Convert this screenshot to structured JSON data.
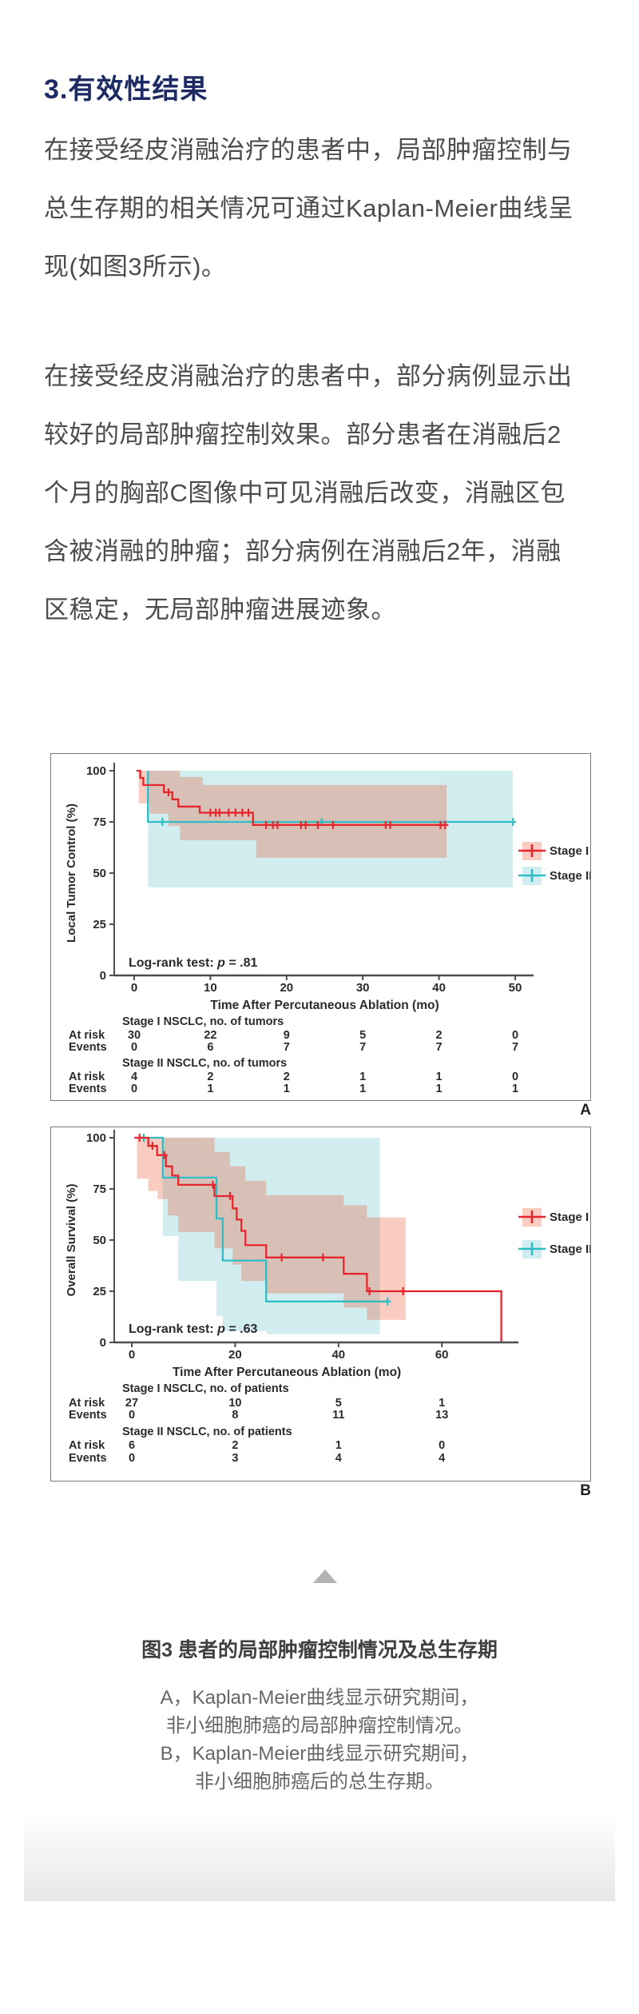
{
  "heading": "3.有效性结果",
  "paragraphs": {
    "p1": "在接受经皮消融治疗的患者中，局部肿瘤控制与\n总生存期的相关情况可通过Kaplan-Meier曲线呈\n现(如图3所示)。",
    "p2": "在接受经皮消融治疗的患者中，部分病例显示出\n较好的局部肿瘤控制效果。部分患者在消融后2\n个月的胸部C图像中可见消融后改变，消融区包\n含被消融的肿瘤；部分病例在消融后2年，消融\n区稳定，无局部肿瘤进展迹象。"
  },
  "colors": {
    "heading": "#1d2a63",
    "body_text": "#4c4c4c",
    "chart_border": "#77787b",
    "chart_text": "#2a2a2c",
    "axis": "#4d4e50",
    "stage1_red": "#e5262e",
    "stage2_teal": "#2fbec6",
    "stage1_band": "rgba(232,96,60,0.32)",
    "stage2_band": "rgba(70,185,195,0.25)",
    "triangle": "#b2b2b2"
  },
  "icons": {
    "footer_collapse": "triangle-up"
  },
  "caption": {
    "title": "图3  患者的局部肿瘤控制情况及总生存期",
    "body": "A，Kaplan-Meier曲线显示研究期间，\n非小细胞肺癌的局部肿瘤控制情况。\nB，Kaplan-Meier曲线显示研究期间，\n非小细胞肺癌后的总生存期。"
  },
  "chart_data": [
    {
      "panel_label": "A",
      "type": "line",
      "subtype": "kaplan-meier",
      "title": "",
      "ylabel": "Local Tumor Control (%)",
      "xlabel": "Time After Percutaneous Ablation (mo)",
      "xlim": [
        0,
        52
      ],
      "ylim": [
        0,
        100
      ],
      "xticks": [
        0,
        10,
        20,
        30,
        40,
        50
      ],
      "yticks": [
        0,
        25,
        50,
        75,
        100
      ],
      "grid": false,
      "legend_position": "right",
      "logrank_prefix": "Log-rank test: ",
      "logrank_p": " = .81",
      "legend": [
        {
          "name": "Stage I"
        },
        {
          "name": "Stage II"
        }
      ],
      "series": [
        {
          "name": "Stage I",
          "line_color": "#e5262e",
          "band_fill": "rgba(232,96,60,0.32)",
          "steps": [
            [
              0.3,
              100
            ],
            [
              0.8,
              100
            ],
            [
              0.8,
              96.5
            ],
            [
              1.2,
              96.5
            ],
            [
              1.2,
              93
            ],
            [
              3.9,
              93
            ],
            [
              3.9,
              89.5
            ],
            [
              5,
              89.5
            ],
            [
              5,
              86
            ],
            [
              5.8,
              86
            ],
            [
              5.8,
              82.5
            ],
            [
              8.6,
              82.5
            ],
            [
              8.6,
              79.5
            ],
            [
              15.6,
              79.5
            ],
            [
              15.6,
              73.5
            ],
            [
              41,
              73.5
            ]
          ],
          "censors": [
            [
              4.5,
              89.5
            ],
            [
              10,
              79.5
            ],
            [
              10.7,
              79.5
            ],
            [
              11.2,
              79.5
            ],
            [
              12.4,
              79.5
            ],
            [
              13.3,
              79.5
            ],
            [
              14.2,
              79.5
            ],
            [
              15,
              79.5
            ],
            [
              17.3,
              73.5
            ],
            [
              18.2,
              73.5
            ],
            [
              18.8,
              73.5
            ],
            [
              21.9,
              73.5
            ],
            [
              22.5,
              73.5
            ],
            [
              24.1,
              73.5
            ],
            [
              26.1,
              73.5
            ],
            [
              33,
              73.5
            ],
            [
              33.6,
              73.5
            ],
            [
              40.2,
              73.5
            ],
            [
              40.8,
              73.5
            ]
          ],
          "band_upper": [
            [
              0.6,
              100
            ],
            [
              6,
              100
            ],
            [
              6,
              97
            ],
            [
              9,
              97
            ],
            [
              9,
              93
            ],
            [
              41,
              93
            ]
          ],
          "band_lower": [
            [
              0.6,
              84
            ],
            [
              2,
              84
            ],
            [
              2,
              79
            ],
            [
              4.5,
              79
            ],
            [
              4.5,
              73
            ],
            [
              6,
              73
            ],
            [
              6,
              66
            ],
            [
              16,
              66
            ],
            [
              16,
              57.5
            ],
            [
              41,
              57.5
            ]
          ]
        },
        {
          "name": "Stage II",
          "line_color": "#2fbec6",
          "band_fill": "rgba(70,185,195,0.25)",
          "steps": [
            [
              1.8,
              100
            ],
            [
              1.8,
              75
            ],
            [
              49.7,
              75
            ]
          ],
          "censors": [
            [
              3.7,
              75
            ],
            [
              24.6,
              75
            ],
            [
              49.7,
              75
            ]
          ],
          "band_upper": [
            [
              1.8,
              100
            ],
            [
              49.7,
              100
            ]
          ],
          "band_lower": [
            [
              1.8,
              43
            ],
            [
              49.7,
              43
            ]
          ]
        }
      ],
      "risk_table": {
        "row_labels": [
          "At risk",
          "Events"
        ],
        "groups": [
          {
            "title": "Stage I NSCLC, no. of tumors",
            "at_risk": [
              30,
              22,
              9,
              5,
              2,
              0
            ],
            "events": [
              0,
              6,
              7,
              7,
              7,
              7
            ]
          },
          {
            "title": "Stage II NSCLC, no. of tumors",
            "at_risk": [
              4,
              2,
              2,
              1,
              1,
              0
            ],
            "events": [
              0,
              1,
              1,
              1,
              1,
              1
            ]
          }
        ]
      }
    },
    {
      "panel_label": "B",
      "type": "line",
      "subtype": "kaplan-meier",
      "title": "",
      "ylabel": "Overall Survival (%)",
      "xlabel": "Time After Percutaneous Ablation (mo)",
      "xlim": [
        0,
        74
      ],
      "ylim": [
        0,
        100
      ],
      "xticks": [
        0,
        20,
        40,
        60
      ],
      "yticks": [
        0,
        25,
        50,
        75,
        100
      ],
      "grid": false,
      "legend_position": "right",
      "logrank_prefix": "Log-rank test: ",
      "logrank_p": " = .63",
      "legend": [
        {
          "name": "Stage I"
        },
        {
          "name": "Stage II"
        }
      ],
      "series": [
        {
          "name": "Stage I",
          "line_color": "#e5262e",
          "band_fill": "rgba(232,96,60,0.32)",
          "steps": [
            [
              0.5,
              100
            ],
            [
              3.2,
              100
            ],
            [
              3.2,
              96
            ],
            [
              4.9,
              96
            ],
            [
              4.9,
              91.5
            ],
            [
              6.6,
              91.5
            ],
            [
              6.6,
              86
            ],
            [
              7.8,
              86
            ],
            [
              7.8,
              81.5
            ],
            [
              9,
              81.5
            ],
            [
              9,
              77
            ],
            [
              16,
              77
            ],
            [
              16,
              71.5
            ],
            [
              19.5,
              71.5
            ],
            [
              19.5,
              65.5
            ],
            [
              20.3,
              65.5
            ],
            [
              20.3,
              60
            ],
            [
              21.2,
              60
            ],
            [
              21.2,
              54.5
            ],
            [
              22,
              54.5
            ],
            [
              22,
              47.5
            ],
            [
              26,
              47.5
            ],
            [
              26,
              41.5
            ],
            [
              41,
              41.5
            ],
            [
              41,
              33.5
            ],
            [
              45.5,
              33.5
            ],
            [
              45.5,
              25
            ],
            [
              71.5,
              25
            ],
            [
              71.5,
              0
            ]
          ],
          "censors": [
            [
              1.5,
              100
            ],
            [
              4,
              96
            ],
            [
              6.3,
              91.5
            ],
            [
              15.7,
              77
            ],
            [
              19,
              71.5
            ],
            [
              29,
              41.5
            ],
            [
              37,
              41.5
            ],
            [
              46,
              25
            ],
            [
              52.5,
              25
            ]
          ],
          "band_upper": [
            [
              1,
              100
            ],
            [
              16,
              100
            ],
            [
              16,
              93
            ],
            [
              19,
              93
            ],
            [
              19,
              86
            ],
            [
              22,
              86
            ],
            [
              22,
              79
            ],
            [
              26,
              79
            ],
            [
              26,
              72
            ],
            [
              41,
              72
            ],
            [
              41,
              67
            ],
            [
              45.5,
              67
            ],
            [
              45.5,
              61
            ],
            [
              53,
              61
            ]
          ],
          "band_lower": [
            [
              1,
              80
            ],
            [
              3.2,
              80
            ],
            [
              3.2,
              74
            ],
            [
              5,
              74
            ],
            [
              5,
              70
            ],
            [
              7,
              70
            ],
            [
              7,
              62
            ],
            [
              9,
              62
            ],
            [
              9,
              54
            ],
            [
              16,
              54
            ],
            [
              16,
              46
            ],
            [
              19.5,
              46
            ],
            [
              19.5,
              38
            ],
            [
              21.2,
              38
            ],
            [
              21.2,
              30
            ],
            [
              26,
              30
            ],
            [
              26,
              24
            ],
            [
              41,
              24
            ],
            [
              41,
              17
            ],
            [
              45.5,
              17
            ],
            [
              45.5,
              11
            ],
            [
              53,
              11
            ]
          ]
        },
        {
          "name": "Stage II",
          "line_color": "#2fbec6",
          "band_fill": "rgba(70,185,195,0.25)",
          "steps": [
            [
              2,
              100
            ],
            [
              6,
              100
            ],
            [
              6,
              80.5
            ],
            [
              16.4,
              80.5
            ],
            [
              16.4,
              60.5
            ],
            [
              17.6,
              60.5
            ],
            [
              17.6,
              40
            ],
            [
              26,
              40
            ],
            [
              26,
              20
            ],
            [
              49.5,
              20
            ]
          ],
          "censors": [
            [
              2.3,
              100
            ],
            [
              49.5,
              20
            ]
          ],
          "band_upper": [
            [
              6,
              100
            ],
            [
              48,
              100
            ]
          ],
          "band_lower": [
            [
              6,
              52
            ],
            [
              9,
              52
            ],
            [
              9,
              30
            ],
            [
              16.4,
              30
            ],
            [
              16.4,
              13
            ],
            [
              17.6,
              13
            ],
            [
              17.6,
              5.5
            ],
            [
              26,
              5.5
            ],
            [
              26,
              4
            ],
            [
              48,
              4
            ]
          ]
        }
      ],
      "risk_table": {
        "row_labels": [
          "At risk",
          "Events"
        ],
        "groups": [
          {
            "title": "Stage I NSCLC, no. of patients",
            "at_risk": [
              27,
              10,
              5,
              1
            ],
            "events": [
              0,
              8,
              11,
              13
            ]
          },
          {
            "title": "Stage II NSCLC, no. of patients",
            "at_risk": [
              6,
              2,
              1,
              0
            ],
            "events": [
              0,
              3,
              4,
              4
            ]
          }
        ]
      }
    }
  ]
}
